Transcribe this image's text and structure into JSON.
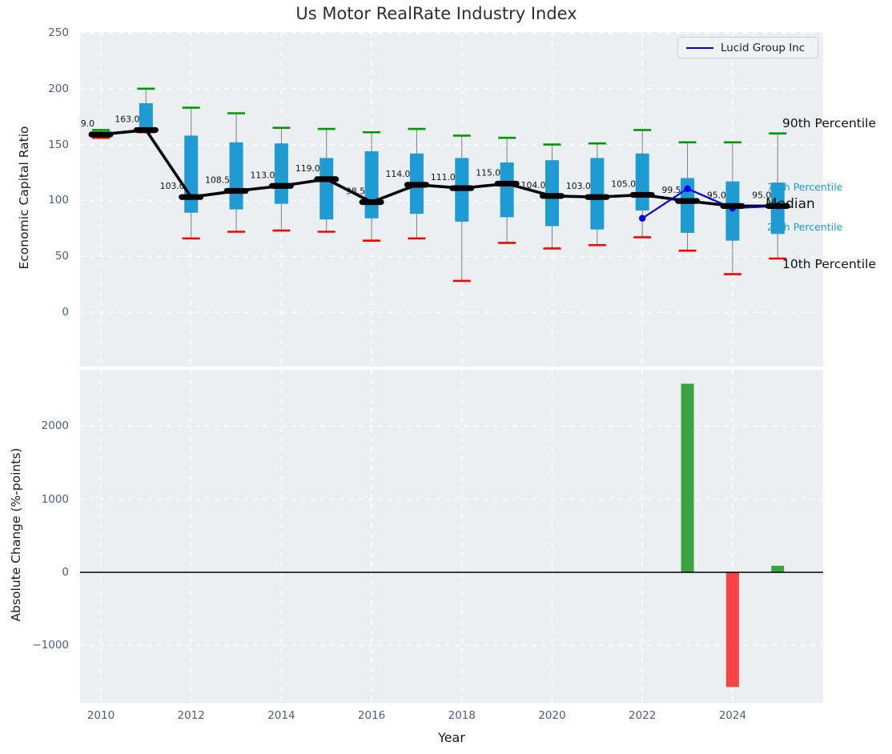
{
  "title": "Us Motor RealRate Industry Index",
  "xlabel": "Year",
  "legend": {
    "label": "Lucid Group Inc"
  },
  "percentile_labels": [
    {
      "kind": "p90",
      "text": "90th Percentile"
    },
    {
      "kind": "p75",
      "text": "75th Percentile"
    },
    {
      "kind": "median",
      "text": "Median"
    },
    {
      "kind": "p25",
      "text": "25th Percentile"
    },
    {
      "kind": "p10",
      "text": "10th Percentile"
    }
  ],
  "colors": {
    "box": "#1e9bd2",
    "whisker": "#7f7f7f",
    "p90_cap": "#009a00",
    "p10_cap": "#f80400",
    "median": "#000000",
    "company_line": "#0000ee",
    "bar_positive": "#3ba342",
    "bar_negative": "#fc4343",
    "panel_bg": "#eceff1",
    "grid": "#ffffff",
    "tick_label": "#4e5f75",
    "percentile_label_cyan": "#1b9cc9",
    "text_dark": "#1a1a1a"
  },
  "chart_data": [
    {
      "type": "boxplot",
      "title": "Us Motor RealRate Industry Index",
      "ylabel": "Economic Capital Ratio",
      "ylim": [
        -49,
        250
      ],
      "yticks": [
        {
          "value": 250,
          "label": "250"
        },
        {
          "value": 200,
          "label": "200"
        },
        {
          "value": 150,
          "label": "150"
        },
        {
          "value": 100,
          "label": "100"
        },
        {
          "value": 50,
          "label": "50"
        },
        {
          "value": 0,
          "label": "0"
        }
      ],
      "years": [
        2010,
        2011,
        2012,
        2013,
        2014,
        2015,
        2016,
        2017,
        2018,
        2019,
        2020,
        2021,
        2022,
        2023,
        2024,
        2025
      ],
      "xticks": [
        2010,
        2012,
        2014,
        2016,
        2018,
        2020,
        2022,
        2024
      ],
      "median": [
        159,
        163,
        103,
        108.5,
        113,
        119,
        98.5,
        114,
        111,
        115,
        104,
        103,
        105,
        99.5,
        95,
        95
      ],
      "median_labels": [
        "159.0",
        "163.0",
        "103.0",
        "108.5",
        "113.0",
        "119.0",
        "98.5",
        "114.0",
        "111.0",
        "115.0",
        "104.0",
        "103.0",
        "105.0",
        "99.5",
        "95.0",
        "95.0"
      ],
      "p90": [
        163,
        200,
        183,
        178,
        165,
        164,
        161,
        164,
        158,
        156,
        150,
        151,
        163,
        152,
        152,
        160
      ],
      "p75": [
        160,
        187,
        158,
        152,
        151,
        138,
        144,
        142,
        138,
        134,
        136,
        138,
        142,
        120,
        117,
        116
      ],
      "p25": [
        157,
        162,
        89,
        92,
        97,
        83,
        84,
        88,
        81,
        85,
        77,
        74,
        91,
        71,
        64,
        70
      ],
      "p10": [
        156,
        161,
        66,
        72,
        73,
        72,
        64,
        66,
        28,
        62,
        57,
        60,
        67,
        55,
        34,
        48
      ],
      "company_series": {
        "name": "Lucid Group Inc",
        "years": [
          2022,
          2023,
          2024,
          2025
        ],
        "values": [
          84,
          110.5,
          93,
          95
        ]
      },
      "legend_position": "upper right",
      "grid": true
    },
    {
      "type": "bar",
      "ylabel": "Absolute Change (%-points)",
      "ylim": [
        -1785,
        2770
      ],
      "yticks": [
        {
          "value": 2000,
          "label": "2000"
        },
        {
          "value": 1000,
          "label": "1000"
        },
        {
          "value": 0,
          "label": "0"
        },
        {
          "value": -1000,
          "label": "−1000"
        }
      ],
      "years": [
        2010,
        2011,
        2012,
        2013,
        2014,
        2015,
        2016,
        2017,
        2018,
        2019,
        2020,
        2021,
        2022,
        2023,
        2024,
        2025
      ],
      "xticks": [
        2010,
        2012,
        2014,
        2016,
        2018,
        2020,
        2022,
        2024
      ],
      "values": [
        null,
        null,
        null,
        null,
        null,
        null,
        null,
        null,
        null,
        null,
        null,
        null,
        null,
        2580,
        -1570,
        90
      ],
      "grid": true
    }
  ]
}
